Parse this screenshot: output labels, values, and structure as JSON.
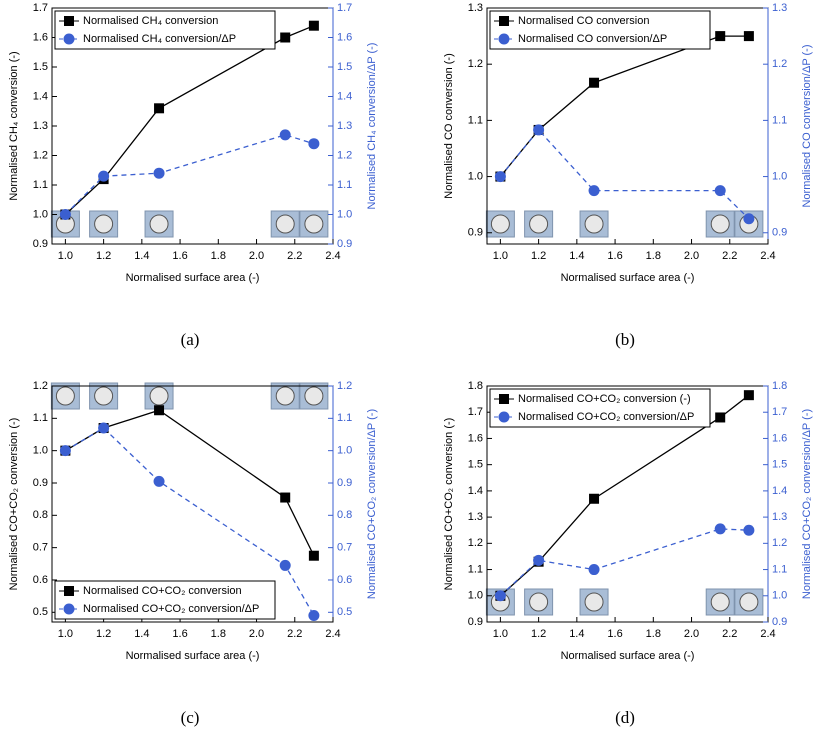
{
  "chart_data": [
    {
      "type": "line",
      "panel_label": "(a)",
      "xlabel": "Normalised surface area (-)",
      "ylabel": "Normalised CH₄ conversion (-)",
      "y2label": "Normalised CH₄ conversion/ΔP (-)",
      "x": [
        1.0,
        1.2,
        1.49,
        2.15,
        2.3
      ],
      "xlim": [
        0.93,
        2.4
      ],
      "xticks": [
        {
          "value": 1.0,
          "label": "1.0"
        },
        1.2,
        1.4,
        1.6,
        1.8,
        {
          "value": 2.0,
          "label": "2.0"
        },
        2.2,
        2.4
      ],
      "ylim": [
        0.9,
        1.7
      ],
      "yticks": [
        0.9,
        {
          "value": 1.0,
          "label": "1.0"
        },
        1.1,
        1.2,
        1.3,
        1.4,
        1.5,
        1.6,
        1.7
      ],
      "y2lim": [
        0.9,
        1.7
      ],
      "y2ticks": [
        0.9,
        {
          "value": 1.0,
          "label": "1.0"
        },
        1.1,
        1.2,
        1.3,
        1.4,
        1.5,
        1.6,
        1.7
      ],
      "legend": "upper left",
      "series": [
        {
          "name": "Normalised CH₄ conversion",
          "color": "#000000",
          "marker": "square",
          "dash": false,
          "values": [
            1.0,
            1.12,
            1.36,
            1.6,
            1.64
          ]
        },
        {
          "name": "Normalised CH₄ conversion/ΔP",
          "color": "#3b5fd0",
          "marker": "circle",
          "dash": true,
          "axis": "y2",
          "values": [
            1.0,
            1.13,
            1.14,
            1.27,
            1.24
          ]
        }
      ]
    },
    {
      "type": "line",
      "panel_label": "(b)",
      "xlabel": "Normalised surface area (-)",
      "ylabel": "Normalised CO conversion (-)",
      "y2label": "Normalised CO conversion/ΔP (-)",
      "x": [
        1.0,
        1.2,
        1.49,
        2.15,
        2.3
      ],
      "xlim": [
        0.93,
        2.4
      ],
      "xticks": [
        {
          "value": 1.0,
          "label": "1.0"
        },
        1.2,
        1.4,
        1.6,
        1.8,
        {
          "value": 2.0,
          "label": "2.0"
        },
        2.2,
        2.4
      ],
      "ylim": [
        0.88,
        1.3
      ],
      "yticks": [
        0.9,
        {
          "value": 1.0,
          "label": "1.0"
        },
        1.1,
        1.2,
        1.3
      ],
      "y2lim": [
        0.88,
        1.3
      ],
      "y2ticks": [
        0.9,
        {
          "value": 1.0,
          "label": "1.0"
        },
        1.1,
        1.2,
        1.3
      ],
      "legend": "upper left",
      "series": [
        {
          "name": "Normalised CO conversion",
          "color": "#000000",
          "marker": "square",
          "dash": false,
          "values": [
            1.0,
            1.083,
            1.167,
            1.25,
            1.25
          ]
        },
        {
          "name": "Normalised CO conversion/ΔP",
          "color": "#3b5fd0",
          "marker": "circle",
          "dash": true,
          "axis": "y2",
          "values": [
            1.0,
            1.083,
            0.975,
            0.975,
            0.925
          ]
        }
      ]
    },
    {
      "type": "line",
      "panel_label": "(c)",
      "xlabel": "Normalised surface area (-)",
      "ylabel": "Normalised CO+CO₂ conversion (-)",
      "y2label": "Normalised CO+CO₂ conversion/ΔP (-)",
      "x": [
        1.0,
        1.2,
        1.49,
        2.15,
        2.3
      ],
      "xlim": [
        0.93,
        2.4
      ],
      "xticks": [
        {
          "value": 1.0,
          "label": "1.0"
        },
        1.2,
        1.4,
        1.6,
        1.8,
        {
          "value": 2.0,
          "label": "2.0"
        },
        2.2,
        2.4
      ],
      "ylim": [
        0.47,
        1.2
      ],
      "yticks": [
        0.5,
        0.6,
        0.7,
        0.8,
        0.9,
        {
          "value": 1.0,
          "label": "1.0"
        },
        1.1,
        1.2
      ],
      "y2lim": [
        0.47,
        1.2
      ],
      "y2ticks": [
        0.5,
        0.6,
        0.7,
        0.8,
        0.9,
        {
          "value": 1.0,
          "label": "1.0"
        },
        1.1,
        1.2
      ],
      "legend": "lower left",
      "series": [
        {
          "name": "Normalised CO+CO₂ conversion",
          "color": "#000000",
          "marker": "square",
          "dash": false,
          "values": [
            1.0,
            1.07,
            1.125,
            0.855,
            0.675
          ]
        },
        {
          "name": "Normalised CO+CO₂ conversion/ΔP",
          "color": "#3b5fd0",
          "marker": "circle",
          "dash": true,
          "axis": "y2",
          "values": [
            1.0,
            1.07,
            0.905,
            0.645,
            0.49
          ]
        }
      ]
    },
    {
      "type": "line",
      "panel_label": "(d)",
      "xlabel": "Normalised surface area (-)",
      "ylabel": "Normalised CO+CO₂ conversion (-)",
      "y2label": "Normalised CO+CO₂ conversion/ΔP (-)",
      "x": [
        1.0,
        1.2,
        1.49,
        2.15,
        2.3
      ],
      "xlim": [
        0.93,
        2.4
      ],
      "xticks": [
        {
          "value": 1.0,
          "label": "1.0"
        },
        1.2,
        1.4,
        1.6,
        1.8,
        {
          "value": 2.0,
          "label": "2.0"
        },
        2.2,
        2.4
      ],
      "ylim": [
        0.9,
        1.8
      ],
      "yticks": [
        0.9,
        {
          "value": 1.0,
          "label": "1.0"
        },
        1.1,
        1.2,
        1.3,
        1.4,
        1.5,
        1.6,
        1.7,
        1.8
      ],
      "y2lim": [
        0.9,
        1.8
      ],
      "y2ticks": [
        0.9,
        {
          "value": 1.0,
          "label": "1.0"
        },
        1.1,
        1.2,
        1.3,
        1.4,
        1.5,
        1.6,
        1.7,
        1.8
      ],
      "legend": "upper left",
      "series": [
        {
          "name": "Normalised CO+CO₂ conversion (-)",
          "color": "#000000",
          "marker": "square",
          "dash": false,
          "values": [
            1.0,
            1.13,
            1.37,
            1.68,
            1.765
          ]
        },
        {
          "name": "Normalised CO+CO₂ conversion/ΔP",
          "color": "#3b5fd0",
          "marker": "circle",
          "dash": true,
          "axis": "y2",
          "values": [
            1.0,
            1.135,
            1.1,
            1.255,
            1.25
          ]
        }
      ]
    }
  ]
}
